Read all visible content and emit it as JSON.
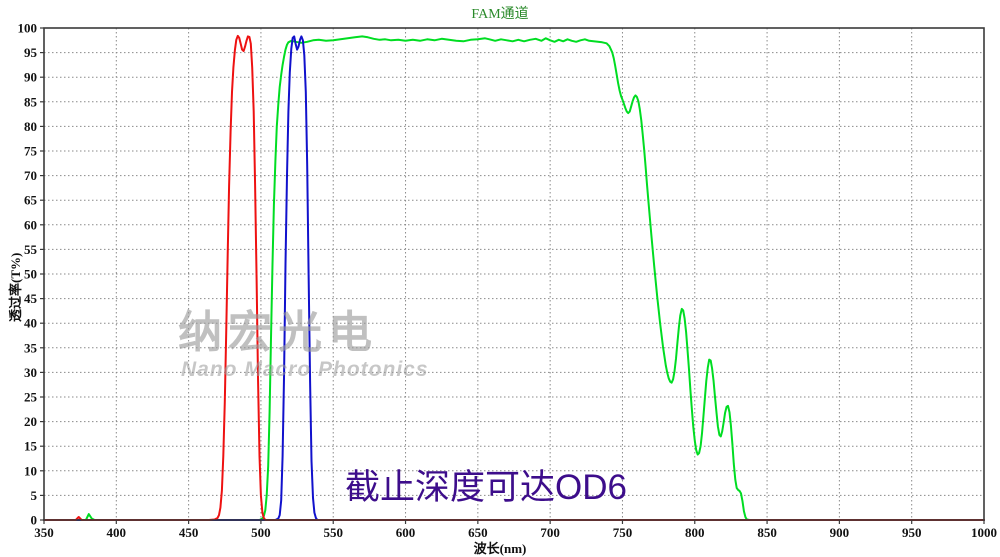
{
  "chart": {
    "title": "FAM通道",
    "title_color": "#2a8a2a",
    "xlabel": "波长(nm)",
    "ylabel": "透过率(T%)"
  },
  "watermark": {
    "cn": "纳宏光电",
    "en": "Nano Macro Photonics",
    "color": "#9a9a9a"
  },
  "annotation": {
    "text": "截止深度可达OD6",
    "color": "#3d0d8b"
  },
  "chart_data": {
    "type": "line",
    "title": "FAM通道",
    "xlabel": "波长(nm)",
    "ylabel": "透过率(T%)",
    "xlim": [
      350,
      1000
    ],
    "ylim": [
      0,
      100
    ],
    "x_ticks": [
      350,
      400,
      450,
      500,
      550,
      600,
      650,
      700,
      750,
      800,
      850,
      900,
      950,
      1000
    ],
    "y_ticks": [
      0,
      5,
      10,
      15,
      20,
      25,
      30,
      35,
      40,
      45,
      50,
      55,
      60,
      65,
      70,
      75,
      80,
      85,
      90,
      95,
      100
    ],
    "grid": "dotted",
    "grid_color": "#8a8a8a",
    "legend": "none",
    "series": [
      {
        "name": "green-bandpass",
        "color": "#00dd22",
        "points": [
          [
            350,
            0
          ],
          [
            379,
            0
          ],
          [
            381,
            1.2
          ],
          [
            383,
            0.3
          ],
          [
            385,
            0
          ],
          [
            499,
            0
          ],
          [
            501,
            0.3
          ],
          [
            502,
            0.8
          ],
          [
            503,
            2
          ],
          [
            504,
            5
          ],
          [
            505,
            11
          ],
          [
            506,
            22
          ],
          [
            507,
            37
          ],
          [
            508,
            52
          ],
          [
            509,
            64
          ],
          [
            510,
            73
          ],
          [
            511,
            80
          ],
          [
            512,
            84.5
          ],
          [
            513,
            88
          ],
          [
            514,
            90.5
          ],
          [
            515,
            92.5
          ],
          [
            516,
            94.2
          ],
          [
            517,
            95.6
          ],
          [
            518,
            96.6
          ],
          [
            519,
            97.1
          ],
          [
            521,
            97.4
          ],
          [
            524,
            97.2
          ],
          [
            528,
            97
          ],
          [
            532,
            97.2
          ],
          [
            536,
            97.5
          ],
          [
            540,
            97.6
          ],
          [
            545,
            97.4
          ],
          [
            550,
            97.5
          ],
          [
            555,
            97.7
          ],
          [
            560,
            97.9
          ],
          [
            565,
            98.1
          ],
          [
            570,
            98.3
          ],
          [
            574,
            98.1
          ],
          [
            578,
            97.8
          ],
          [
            582,
            97.6
          ],
          [
            586,
            97.7
          ],
          [
            590,
            97.5
          ],
          [
            595,
            97.6
          ],
          [
            600,
            97.4
          ],
          [
            605,
            97.6
          ],
          [
            610,
            97.4
          ],
          [
            615,
            97.7
          ],
          [
            620,
            97.5
          ],
          [
            625,
            97.8
          ],
          [
            630,
            97.6
          ],
          [
            635,
            97.4
          ],
          [
            640,
            97.3
          ],
          [
            645,
            97.6
          ],
          [
            650,
            97.7
          ],
          [
            655,
            97.9
          ],
          [
            658,
            97.7
          ],
          [
            662,
            97.4
          ],
          [
            666,
            97.7
          ],
          [
            670,
            97.5
          ],
          [
            674,
            97.3
          ],
          [
            678,
            97.6
          ],
          [
            682,
            97.3
          ],
          [
            686,
            97.6
          ],
          [
            690,
            97.8
          ],
          [
            694,
            97.4
          ],
          [
            697,
            97.9
          ],
          [
            700,
            97.5
          ],
          [
            703,
            97.2
          ],
          [
            706,
            97.6
          ],
          [
            709,
            97.3
          ],
          [
            712,
            97.7
          ],
          [
            715,
            97.4
          ],
          [
            718,
            97.2
          ],
          [
            721,
            97.5
          ],
          [
            724,
            97.7
          ],
          [
            727,
            97.4
          ],
          [
            730,
            97.3
          ],
          [
            733,
            97.2
          ],
          [
            736,
            97.1
          ],
          [
            739,
            96.9
          ],
          [
            741,
            96.3
          ],
          [
            743,
            95
          ],
          [
            744,
            93.8
          ],
          [
            745,
            92.3
          ],
          [
            746,
            90.5
          ],
          [
            747,
            88.8
          ],
          [
            748,
            87.3
          ],
          [
            749,
            86.2
          ],
          [
            750,
            85.4
          ],
          [
            751,
            84.6
          ],
          [
            752,
            83.7
          ],
          [
            753,
            83
          ],
          [
            754,
            82.7
          ],
          [
            755,
            83
          ],
          [
            756,
            84
          ],
          [
            757,
            85.1
          ],
          [
            758,
            85.9
          ],
          [
            759,
            86.3
          ],
          [
            760,
            86
          ],
          [
            761,
            85.1
          ],
          [
            762,
            83.5
          ],
          [
            763,
            81.2
          ],
          [
            764,
            78.4
          ],
          [
            765,
            75.2
          ],
          [
            766,
            71.8
          ],
          [
            767,
            68.2
          ],
          [
            768,
            64.6
          ],
          [
            770,
            57.8
          ],
          [
            772,
            51.4
          ],
          [
            774,
            45.4
          ],
          [
            776,
            40
          ],
          [
            778,
            35.2
          ],
          [
            780,
            31.4
          ],
          [
            781,
            29.9
          ],
          [
            782,
            28.8
          ],
          [
            783,
            28.1
          ],
          [
            784,
            27.9
          ],
          [
            785,
            28.6
          ],
          [
            786,
            30.2
          ],
          [
            787,
            32.8
          ],
          [
            788,
            36
          ],
          [
            789,
            39.2
          ],
          [
            790,
            41.6
          ],
          [
            791,
            42.9
          ],
          [
            792,
            42.6
          ],
          [
            793,
            41
          ],
          [
            794,
            38.2
          ],
          [
            795,
            34.6
          ],
          [
            796,
            30.6
          ],
          [
            797,
            26.4
          ],
          [
            798,
            22.4
          ],
          [
            799,
            18.9
          ],
          [
            800,
            16.1
          ],
          [
            801,
            14.2
          ],
          [
            802,
            13.3
          ],
          [
            803,
            13.6
          ],
          [
            804,
            15
          ],
          [
            805,
            17.6
          ],
          [
            806,
            21
          ],
          [
            807,
            24.8
          ],
          [
            808,
            28.3
          ],
          [
            809,
            31
          ],
          [
            810,
            32.6
          ],
          [
            811,
            32.4
          ],
          [
            812,
            30.8
          ],
          [
            813,
            28.2
          ],
          [
            814,
            25
          ],
          [
            815,
            21.8
          ],
          [
            816,
            19
          ],
          [
            817,
            17.3
          ],
          [
            818,
            17
          ],
          [
            819,
            18
          ],
          [
            820,
            19.9
          ],
          [
            821,
            21.8
          ],
          [
            822,
            23
          ],
          [
            823,
            23.2
          ],
          [
            824,
            21.9
          ],
          [
            825,
            19.2
          ],
          [
            826,
            15.4
          ],
          [
            827,
            11.4
          ],
          [
            828,
            8.2
          ],
          [
            829,
            6.5
          ],
          [
            830,
            6.1
          ],
          [
            831,
            5.9
          ],
          [
            832,
            5.4
          ],
          [
            833,
            3.8
          ],
          [
            834,
            1.8
          ],
          [
            835,
            0.6
          ],
          [
            836,
            0.1
          ],
          [
            838,
            0
          ],
          [
            1000,
            0
          ]
        ]
      },
      {
        "name": "blue-bandpass",
        "color": "#1111cc",
        "points": [
          [
            350,
            0
          ],
          [
            510,
            0
          ],
          [
            512,
            0.3
          ],
          [
            513,
            1
          ],
          [
            514,
            4
          ],
          [
            515,
            13
          ],
          [
            516,
            30
          ],
          [
            517,
            52
          ],
          [
            518,
            70
          ],
          [
            519,
            83
          ],
          [
            520,
            91
          ],
          [
            521,
            95.8
          ],
          [
            522,
            98
          ],
          [
            523,
            98.3
          ],
          [
            524,
            96.8
          ],
          [
            525,
            95.6
          ],
          [
            526,
            96.2
          ],
          [
            527,
            97.6
          ],
          [
            528,
            98.3
          ],
          [
            529,
            97.5
          ],
          [
            530,
            94.5
          ],
          [
            531,
            87
          ],
          [
            532,
            72
          ],
          [
            533,
            50
          ],
          [
            534,
            28
          ],
          [
            535,
            12
          ],
          [
            536,
            4.5
          ],
          [
            537,
            1.5
          ],
          [
            538,
            0.4
          ],
          [
            539,
            0
          ],
          [
            1000,
            0
          ]
        ]
      },
      {
        "name": "red-bandpass",
        "color": "#ee1111",
        "points": [
          [
            350,
            0
          ],
          [
            372,
            0
          ],
          [
            374,
            0.6
          ],
          [
            376,
            0
          ],
          [
            464,
            0
          ],
          [
            468,
            0.1
          ],
          [
            470,
            0.4
          ],
          [
            471,
            1
          ],
          [
            472,
            2.5
          ],
          [
            473,
            6
          ],
          [
            474,
            13
          ],
          [
            475,
            24
          ],
          [
            476,
            38
          ],
          [
            477,
            54
          ],
          [
            478,
            68
          ],
          [
            479,
            79
          ],
          [
            480,
            87
          ],
          [
            481,
            92
          ],
          [
            482,
            95.5
          ],
          [
            483,
            97.6
          ],
          [
            484,
            98.4
          ],
          [
            485,
            98
          ],
          [
            486,
            96.8
          ],
          [
            487,
            95.6
          ],
          [
            488,
            95.3
          ],
          [
            489,
            96.2
          ],
          [
            490,
            97.4
          ],
          [
            491,
            98.3
          ],
          [
            492,
            98.2
          ],
          [
            493,
            96.8
          ],
          [
            494,
            92
          ],
          [
            495,
            83
          ],
          [
            496,
            68
          ],
          [
            497,
            49
          ],
          [
            498,
            29
          ],
          [
            499,
            13
          ],
          [
            500,
            5
          ],
          [
            501,
            1.5
          ],
          [
            502,
            0.4
          ],
          [
            503,
            0
          ],
          [
            1000,
            0
          ]
        ]
      }
    ]
  }
}
